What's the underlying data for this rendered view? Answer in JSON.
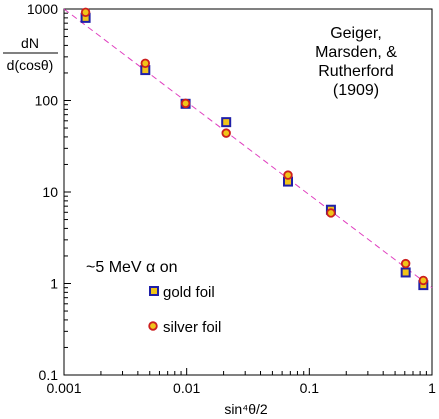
{
  "chart_data": {
    "type": "scatter",
    "xscale": "log",
    "yscale": "log",
    "xlim": [
      0.001,
      1
    ],
    "ylim": [
      0.1,
      1000
    ],
    "xlabel": "sin⁴θ/2",
    "ylabel_top": "dN",
    "ylabel_bottom": "d(cosθ)",
    "x_ticks": [
      {
        "value": 0.001,
        "label": "0.001"
      },
      {
        "value": 0.01,
        "label": "0.01"
      },
      {
        "value": 0.1,
        "label": "0.1"
      },
      {
        "value": 1,
        "label": "1"
      }
    ],
    "y_ticks": [
      {
        "value": 0.1,
        "label": "0.1"
      },
      {
        "value": 1,
        "label": "1"
      },
      {
        "value": 10,
        "label": "10"
      },
      {
        "value": 100,
        "label": "100"
      },
      {
        "value": 1000,
        "label": "1000"
      }
    ],
    "citation_lines": [
      "Geiger,",
      "Marsden, &",
      "Rutherford",
      "(1909)"
    ],
    "legend_title": "~5 MeV α on",
    "grid": false,
    "series": [
      {
        "name": "gold foil",
        "marker": "square",
        "fill": "#f0c419",
        "stroke": "#1f1fa8",
        "points": [
          {
            "x": 0.0015,
            "y": 800
          },
          {
            "x": 0.0046,
            "y": 215
          },
          {
            "x": 0.0098,
            "y": 92
          },
          {
            "x": 0.021,
            "y": 58
          },
          {
            "x": 0.067,
            "y": 13
          },
          {
            "x": 0.15,
            "y": 6.4
          },
          {
            "x": 0.61,
            "y": 1.32
          },
          {
            "x": 0.85,
            "y": 0.96
          }
        ]
      },
      {
        "name": "silver foil",
        "marker": "circle",
        "fill": "#f0c419",
        "stroke": "#cc1f1f",
        "points": [
          {
            "x": 0.0015,
            "y": 920
          },
          {
            "x": 0.0046,
            "y": 255
          },
          {
            "x": 0.0098,
            "y": 93
          },
          {
            "x": 0.021,
            "y": 44
          },
          {
            "x": 0.067,
            "y": 15.3
          },
          {
            "x": 0.15,
            "y": 5.9
          },
          {
            "x": 0.61,
            "y": 1.65
          },
          {
            "x": 0.85,
            "y": 1.08
          }
        ]
      }
    ],
    "fit_line": {
      "style": "dashed",
      "color": "#e040c0",
      "x": [
        0.001,
        1
      ],
      "y": [
        1000,
        0.9
      ]
    }
  }
}
